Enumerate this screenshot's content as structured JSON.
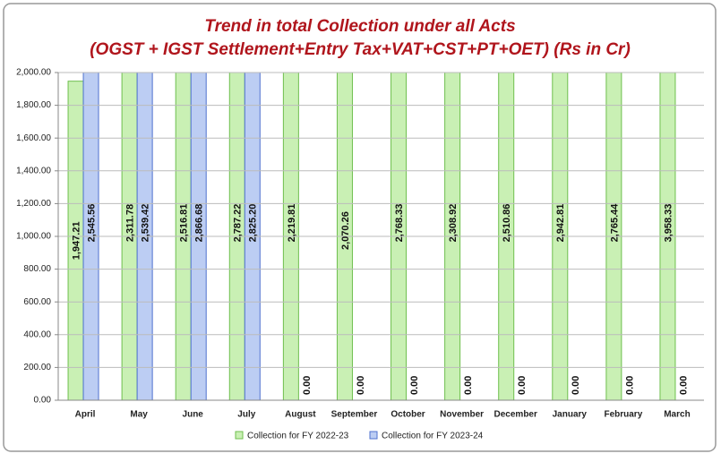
{
  "chart_data": {
    "type": "bar",
    "title": "Trend in total Collection under all Acts",
    "subtitle": "(OGST + IGST Settlement+Entry Tax+VAT+CST+PT+OET) (Rs in Cr)",
    "categories": [
      "April",
      "May",
      "June",
      "July",
      "August",
      "September",
      "October",
      "November",
      "December",
      "January",
      "February",
      "March"
    ],
    "series": [
      {
        "name": "Collection for FY 2022-23",
        "color": "#c9f0b4",
        "edge_color": "#6fbf4e",
        "values": [
          1947.21,
          2311.78,
          2516.81,
          2787.22,
          2219.81,
          2070.26,
          2768.33,
          2308.92,
          2510.86,
          2942.81,
          2765.44,
          3958.33
        ],
        "value_labels": [
          "1,947.21",
          "2,311.78",
          "2,516.81",
          "2,787.22",
          "2,219.81",
          "2,070.26",
          "2,768.33",
          "2,308.92",
          "2,510.86",
          "2,942.81",
          "2,765.44",
          "3,958.33"
        ]
      },
      {
        "name": "Collection for FY 2023-24",
        "color": "#bccdf3",
        "edge_color": "#4f72cf",
        "values": [
          2545.56,
          2539.42,
          2866.68,
          2825.2,
          0,
          0,
          0,
          0,
          0,
          0,
          0,
          0
        ],
        "value_labels": [
          "2,545.56",
          "2,539.42",
          "2,866.68",
          "2,825.20",
          "0.00",
          "0.00",
          "0.00",
          "0.00",
          "0.00",
          "0.00",
          "0.00",
          "0.00"
        ]
      }
    ],
    "ylim": [
      0,
      2000
    ],
    "yticks": [
      {
        "value": 0,
        "label": "0.00"
      },
      {
        "value": 200,
        "label": "200.00"
      },
      {
        "value": 400,
        "label": "400.00"
      },
      {
        "value": 600,
        "label": "600.00"
      },
      {
        "value": 800,
        "label": "800.00"
      },
      {
        "value": 1000,
        "label": "1,000.00"
      },
      {
        "value": 1200,
        "label": "1,200.00"
      },
      {
        "value": 1400,
        "label": "1,400.00"
      },
      {
        "value": 1600,
        "label": "1,600.00"
      },
      {
        "value": 1800,
        "label": "1,800.00"
      },
      {
        "value": 2000,
        "label": "2,000.00"
      }
    ],
    "grid": true,
    "legend": "bottom"
  }
}
